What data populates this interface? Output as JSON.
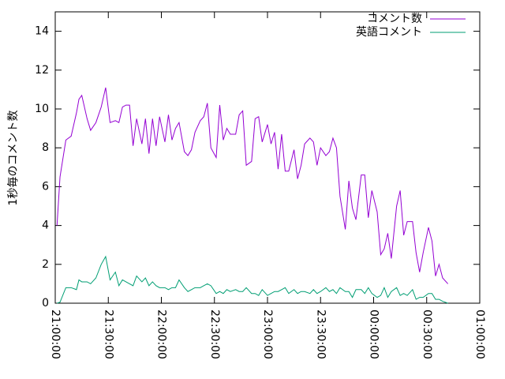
{
  "chart_data": {
    "type": "line",
    "y_label": "1秒毎のコメント数",
    "x": [
      1,
      2.7,
      6,
      9,
      12,
      13.4,
      15,
      18,
      20,
      23,
      26,
      28.5,
      31,
      34,
      36,
      38,
      40,
      42,
      44,
      46,
      49,
      51,
      53,
      55,
      57,
      59,
      62,
      64,
      66,
      68,
      70,
      73,
      75,
      77,
      79,
      82,
      84,
      86,
      88,
      91,
      93,
      95,
      97,
      99,
      102,
      104,
      106,
      108,
      111,
      113,
      115,
      117,
      120,
      122,
      124,
      126,
      128,
      130,
      132,
      135,
      137,
      139,
      141,
      144,
      146,
      148,
      150,
      153,
      155,
      157,
      159,
      161,
      164,
      166,
      168,
      170,
      173,
      175,
      177,
      179,
      182,
      184,
      186,
      188,
      190,
      193,
      195,
      197,
      199,
      202,
      204,
      206,
      208,
      211,
      213,
      215,
      217,
      219,
      222
    ],
    "series": [
      {
        "name": "コメント数",
        "color": "#9400d3",
        "values": [
          4.0,
          6.5,
          8.4,
          8.6,
          9.8,
          10.5,
          10.7,
          9.5,
          8.9,
          9.3,
          10.1,
          11.1,
          9.3,
          9.4,
          9.3,
          10.1,
          10.2,
          10.2,
          8.1,
          9.5,
          8.2,
          9.5,
          7.7,
          9.5,
          8.1,
          9.6,
          8.3,
          9.7,
          8.4,
          9.0,
          9.3,
          7.8,
          7.6,
          7.9,
          8.8,
          9.4,
          9.6,
          10.3,
          8.0,
          7.5,
          10.2,
          8.4,
          9.0,
          8.7,
          8.7,
          9.7,
          9.9,
          7.1,
          7.3,
          9.5,
          9.6,
          8.3,
          9.2,
          8.2,
          8.8,
          6.9,
          8.7,
          6.8,
          6.8,
          7.9,
          6.4,
          7.1,
          8.2,
          8.5,
          8.3,
          7.1,
          8.0,
          7.6,
          7.8,
          8.5,
          8.0,
          5.5,
          3.8,
          6.3,
          4.9,
          4.3,
          6.6,
          6.6,
          4.4,
          5.8,
          4.7,
          2.5,
          2.8,
          3.6,
          2.3,
          5.0,
          5.8,
          3.5,
          4.2,
          4.2,
          2.6,
          1.6,
          2.6,
          3.9,
          3.2,
          1.4,
          2.0,
          1.3,
          1.0
        ]
      },
      {
        "name": "英語コメント",
        "color": "#009e73",
        "values": [
          0,
          0.05,
          0.8,
          0.8,
          0.7,
          1.2,
          1.1,
          1.1,
          1.0,
          1.3,
          2.0,
          2.4,
          1.2,
          1.6,
          0.9,
          1.2,
          1.1,
          1.0,
          0.9,
          1.4,
          1.1,
          1.3,
          0.9,
          1.1,
          0.9,
          0.8,
          0.8,
          0.7,
          0.8,
          0.8,
          1.2,
          0.8,
          0.6,
          0.7,
          0.8,
          0.8,
          0.9,
          1.0,
          0.9,
          0.5,
          0.6,
          0.5,
          0.7,
          0.6,
          0.7,
          0.6,
          0.6,
          0.8,
          0.5,
          0.5,
          0.4,
          0.7,
          0.4,
          0.5,
          0.6,
          0.6,
          0.7,
          0.8,
          0.5,
          0.7,
          0.5,
          0.6,
          0.6,
          0.5,
          0.7,
          0.5,
          0.6,
          0.8,
          0.6,
          0.7,
          0.5,
          0.8,
          0.6,
          0.6,
          0.3,
          0.7,
          0.7,
          0.5,
          0.8,
          0.5,
          0.3,
          0.4,
          0.8,
          0.3,
          0.6,
          0.8,
          0.4,
          0.5,
          0.4,
          0.7,
          0.2,
          0.3,
          0.3,
          0.5,
          0.5,
          0.2,
          0.2,
          0.1,
          0.0
        ]
      }
    ],
    "xlim": [
      0,
      240
    ],
    "xticks": [
      {
        "value": 0,
        "label": "21:00:00"
      },
      {
        "value": 30,
        "label": "21:30:00"
      },
      {
        "value": 60,
        "label": "22:00:00"
      },
      {
        "value": 90,
        "label": "22:30:00"
      },
      {
        "value": 120,
        "label": "23:00:00"
      },
      {
        "value": 150,
        "label": "23:30:00"
      },
      {
        "value": 180,
        "label": "00:00:00"
      },
      {
        "value": 210,
        "label": "00:30:00"
      },
      {
        "value": 240,
        "label": "01:00:00"
      }
    ],
    "ylim": [
      0,
      15
    ],
    "yticks": [
      0,
      2,
      4,
      6,
      8,
      10,
      12,
      14
    ],
    "legend": "top-right"
  }
}
